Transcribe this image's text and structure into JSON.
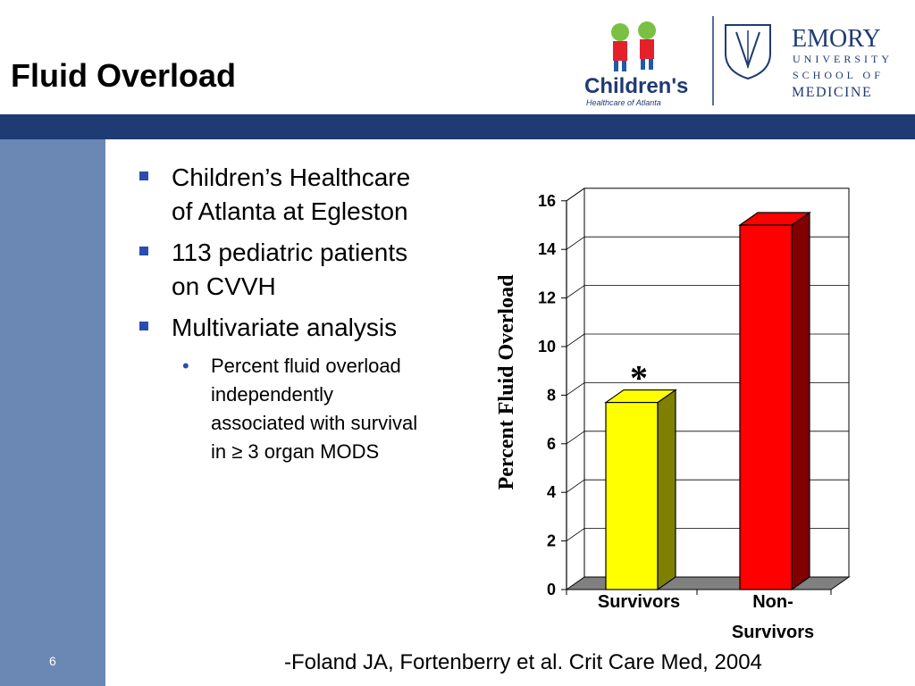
{
  "slide": {
    "title": "Fluid Overload",
    "number": "6",
    "citation": "-Foland JA, Fortenberry et al.  Crit Care Med, 2004"
  },
  "logos": {
    "childrens_name": "Children's",
    "childrens_sub": "Healthcare of Atlanta",
    "emory_line1": "EMORY",
    "emory_line2": "UNIVERSITY",
    "emory_line3": "SCHOOL OF",
    "emory_line4": "MEDICINE"
  },
  "bullets": [
    {
      "text_line1": "Children’s Healthcare",
      "text_line2": "of Atlanta at Egleston"
    },
    {
      "text_line1": "113 pediatric patients",
      "text_line2": "on CVVH"
    },
    {
      "text_line1": "Multivariate analysis",
      "text_line2": ""
    }
  ],
  "sub_bullet": {
    "line1": "Percent fluid overload",
    "line2": "independently",
    "line3": "associated with survival",
    "line4": "in ≥ 3 organ MODS"
  },
  "chart_data": {
    "type": "bar",
    "categories": [
      "Survivors",
      "Non-Survivors"
    ],
    "category_lines": [
      [
        "Survivors"
      ],
      [
        "Non-",
        "Survivors"
      ]
    ],
    "values": [
      7.7,
      15.0
    ],
    "ylabel": "Percent Fluid Overload",
    "ylim": [
      0,
      16
    ],
    "yticks": [
      0,
      2,
      4,
      6,
      8,
      10,
      12,
      14,
      16
    ],
    "annotation": "*",
    "grid": true,
    "colors": {
      "survivors": "#ffff00",
      "non_survivors": "#ff0000",
      "survivors_side": "#808000",
      "non_survivors_side": "#800000",
      "floor": "#808080"
    }
  },
  "colors": {
    "header_bar": "#1f3b73",
    "side_bar": "#6b87b3",
    "bullet_accent": "#2a4db0"
  }
}
